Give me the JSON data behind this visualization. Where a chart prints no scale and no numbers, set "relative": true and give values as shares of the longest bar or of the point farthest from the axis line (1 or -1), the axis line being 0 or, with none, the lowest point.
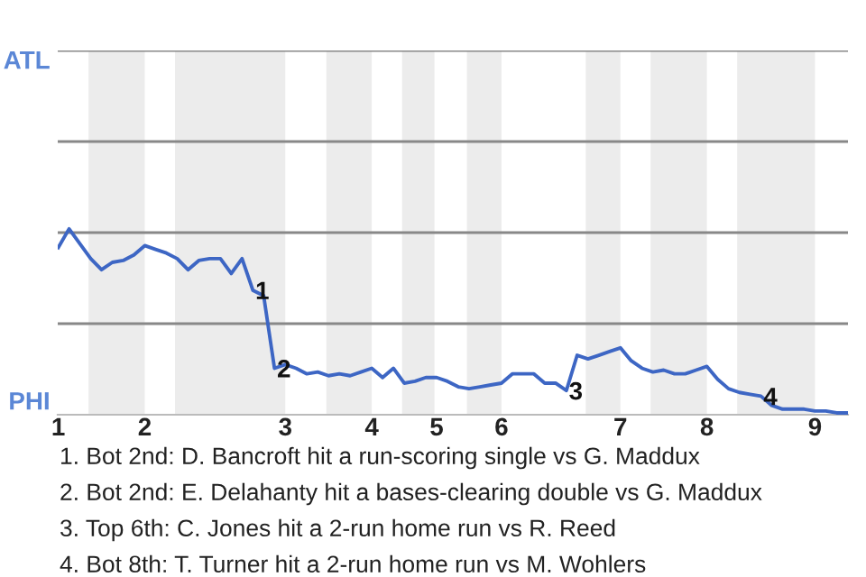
{
  "chart_data": {
    "type": "line",
    "relative": true,
    "categories": [
      "1",
      null,
      null,
      null,
      null,
      null,
      null,
      null,
      "2",
      null,
      null,
      null,
      null,
      null,
      null,
      null,
      null,
      null,
      null,
      null,
      null,
      "3",
      null,
      null,
      null,
      null,
      null,
      null,
      null,
      "4",
      null,
      null,
      null,
      null,
      null,
      "5",
      null,
      null,
      null,
      null,
      null,
      "6",
      null,
      null,
      null,
      null,
      null,
      null,
      null,
      null,
      null,
      null,
      "7",
      null,
      null,
      null,
      null,
      null,
      null,
      null,
      "8",
      null,
      null,
      null,
      null,
      null,
      null,
      null,
      null,
      null,
      "9",
      null,
      null,
      null
    ],
    "series": [
      {
        "color": "#3d66c4",
        "values": [
          0.9,
          1.0,
          0.92,
          0.84,
          0.78,
          0.82,
          0.83,
          0.86,
          0.91,
          0.89,
          0.87,
          0.84,
          0.78,
          0.83,
          0.84,
          0.84,
          0.76,
          0.84,
          0.67,
          0.64,
          0.25,
          0.27,
          0.25,
          0.22,
          0.23,
          0.21,
          0.22,
          0.21,
          0.23,
          0.25,
          0.2,
          0.25,
          0.17,
          0.18,
          0.2,
          0.2,
          0.18,
          0.15,
          0.14,
          0.15,
          0.16,
          0.17,
          0.22,
          0.22,
          0.22,
          0.17,
          0.17,
          0.13,
          0.32,
          0.3,
          0.32,
          0.34,
          0.36,
          0.29,
          0.25,
          0.23,
          0.24,
          0.22,
          0.22,
          0.24,
          0.26,
          0.19,
          0.14,
          0.12,
          0.11,
          0.1,
          0.05,
          0.03,
          0.03,
          0.03,
          0.02,
          0.02,
          0.01,
          0.01
        ]
      }
    ],
    "ref_lines": [
      {
        "axis": "y",
        "value": 0.49,
        "color": "#888888"
      },
      {
        "axis": "y",
        "value": 0.98,
        "color": "#888888"
      },
      {
        "axis": "y",
        "value": 1.47,
        "color": "#888888"
      },
      {
        "axis": "y",
        "value": 1.96,
        "color": "#888888"
      }
    ],
    "annotations": [
      {
        "text": "1",
        "y": 0.67
      },
      {
        "text": "2",
        "y": 0.25
      },
      {
        "text": "3",
        "y": 0.13
      },
      {
        "text": "4",
        "y": 0.1
      },
      "ATL",
      "PHI",
      "1. Bot 2nd: D. Bancroft hit a run-scoring single vs G. Maddux",
      "2. Bot 2nd: E. Delahanty hit a bases-clearing double vs G. Maddux",
      "3. Top 6th: C. Jones hit a 2-run home run vs R. Reed",
      "4. Bot 8th: T. Turner hit a 2-run home run vs M. Wohlers"
    ]
  }
}
